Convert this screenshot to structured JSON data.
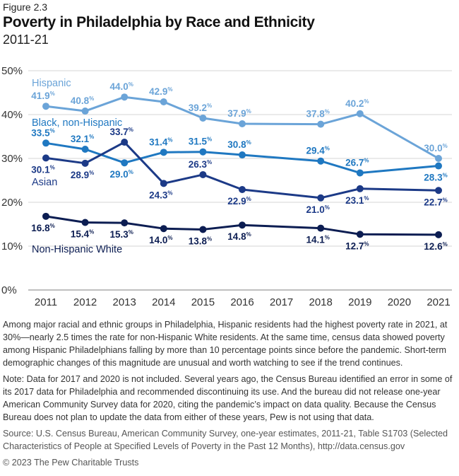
{
  "figure_label": "Figure 2.3",
  "title": "Poverty in Philadelphia by Race and Ethnicity",
  "subtitle": "2011-21",
  "chart_data": {
    "type": "line",
    "title": "Poverty in Philadelphia by Race and Ethnicity",
    "subtitle": "2011-21",
    "x": [
      2011,
      2012,
      2013,
      2014,
      2015,
      2016,
      2018,
      2019,
      2021
    ],
    "x_tick_labels": [
      "2011",
      "2012",
      "2013",
      "2014",
      "2015",
      "2016",
      "2017",
      "2018",
      "2019",
      "2020",
      "2021"
    ],
    "y_tick_labels": [
      "0%",
      "10%",
      "20%",
      "30%",
      "40%",
      "50%"
    ],
    "ylim": [
      0,
      50
    ],
    "grid": true,
    "legend": "inline labels",
    "series": [
      {
        "name": "Hispanic",
        "color": "#6ba4d8",
        "values": [
          41.9,
          40.8,
          44.0,
          42.9,
          39.2,
          37.9,
          37.8,
          40.2,
          30.0
        ]
      },
      {
        "name": "Black, non-Hispanic",
        "color": "#1f78c1",
        "values": [
          33.5,
          32.1,
          29.0,
          31.4,
          31.5,
          30.8,
          29.4,
          26.7,
          28.3
        ]
      },
      {
        "name": "Asian",
        "color": "#1c3a87",
        "values": [
          30.1,
          28.9,
          33.7,
          24.3,
          26.3,
          22.9,
          21.0,
          23.1,
          22.7
        ]
      },
      {
        "name": "Non-Hispanic White",
        "color": "#0c1d52",
        "values": [
          16.8,
          15.4,
          15.3,
          14.0,
          13.8,
          14.8,
          14.1,
          12.7,
          12.6
        ]
      }
    ]
  },
  "description": "Among major racial and ethnic groups in Philadelphia, Hispanic residents had the highest poverty rate in 2021, at 30%—nearly 2.5 times the rate for non-Hispanic White residents. At the same time, census data showed poverty among Hispanic Philadelphians falling by more than 10 percentage points since before the pandemic. Short-term demographic changes of this magnitude are unusual and worth watching to see if the trend continues.",
  "note": "Note: Data for 2017 and 2020 is not included. Several years ago, the Census Bureau identified an error in some of its 2017 data for Philadelphia and recommended discontinuing its use. And the bureau did not release one-year American Community Survey data for 2020, citing the pandemic’s impact on data quality. Because the Census Bureau does not plan to update the data from either of these years, Pew is not using that data.",
  "source": "Source: U.S. Census Bureau, American Community Survey, one-year estimates, 2011-21, Table S1703 (Selected Characteristics of People at Specified Levels of Poverty in the Past 12 Months), http://data.census.gov",
  "copyright": "© 2023 The Pew Charitable Trusts"
}
